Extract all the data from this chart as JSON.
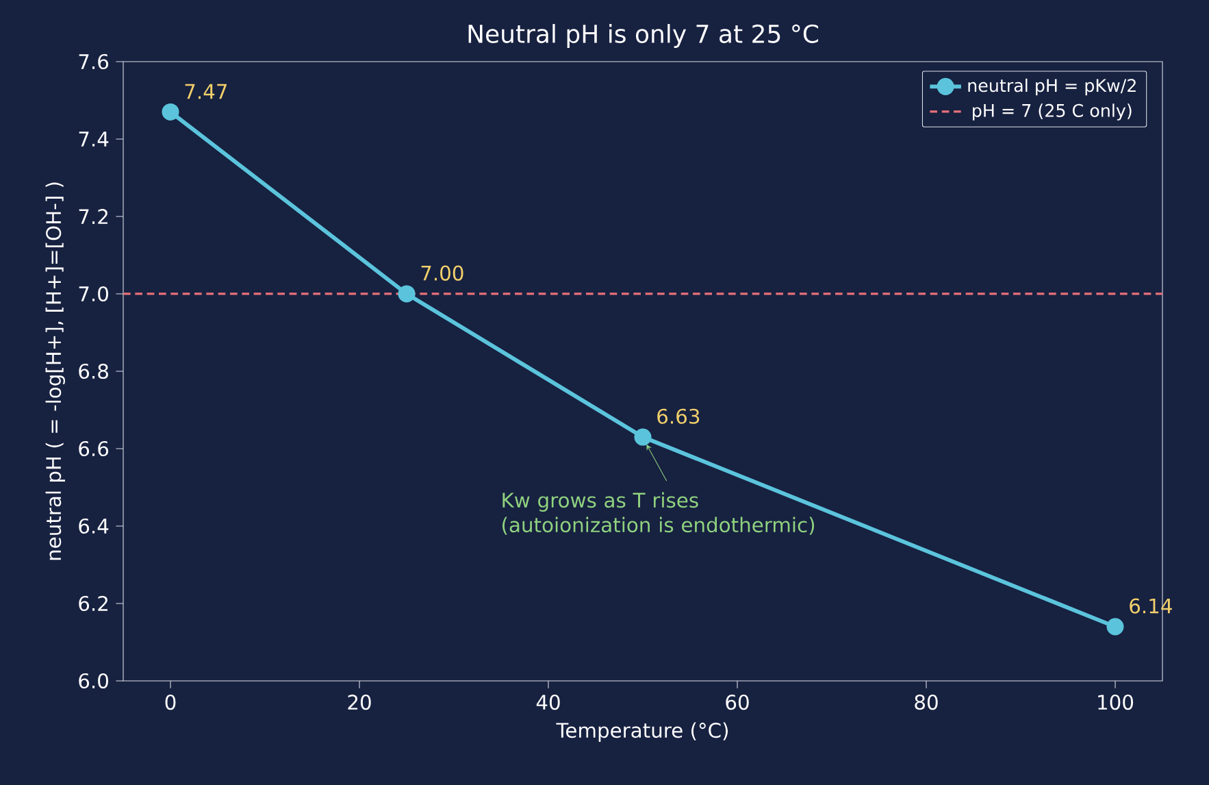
{
  "chart_data": {
    "type": "line",
    "title": "Neutral pH is only 7 at 25 °C",
    "xlabel": "Temperature (°C)",
    "ylabel": "neutral pH  ( = -log[H+], [H+]=[OH-] )",
    "x": [
      0,
      25,
      50,
      100
    ],
    "series": [
      {
        "name": "neutral pH = pKw/2",
        "color": "#5bc4dc",
        "values": [
          7.47,
          7.0,
          6.63,
          6.14
        ],
        "value_labels": [
          "7.47",
          "7.00",
          "6.63",
          "6.14"
        ]
      }
    ],
    "ref_lines": [
      {
        "axis": "y",
        "value": 7,
        "label": "pH = 7 (25 C only)",
        "color": "#e8707a",
        "line_style": "dashed"
      }
    ],
    "annotations": [
      {
        "text": "Kw grows as T rises (autoionization is endothermic)",
        "x": 50,
        "y": 6.63
      }
    ],
    "xlim": [
      -5,
      105
    ],
    "ylim": [
      6.0,
      7.6
    ],
    "xticks": [
      0,
      20,
      40,
      60,
      80,
      100
    ],
    "yticks": [
      {
        "value": 6.0,
        "label": "6.0"
      },
      {
        "value": 6.2,
        "label": "6.2"
      },
      {
        "value": 6.4,
        "label": "6.4"
      },
      {
        "value": 6.6,
        "label": "6.6"
      },
      {
        "value": 6.8,
        "label": "6.8"
      },
      {
        "value": 7.0,
        "label": "7.0"
      },
      {
        "value": 7.2,
        "label": "7.2"
      },
      {
        "value": 7.4,
        "label": "7.4"
      },
      {
        "value": 7.6,
        "label": "7.6"
      }
    ],
    "grid": false,
    "legend": "top right",
    "marker": "circle",
    "line_style": "solid"
  }
}
